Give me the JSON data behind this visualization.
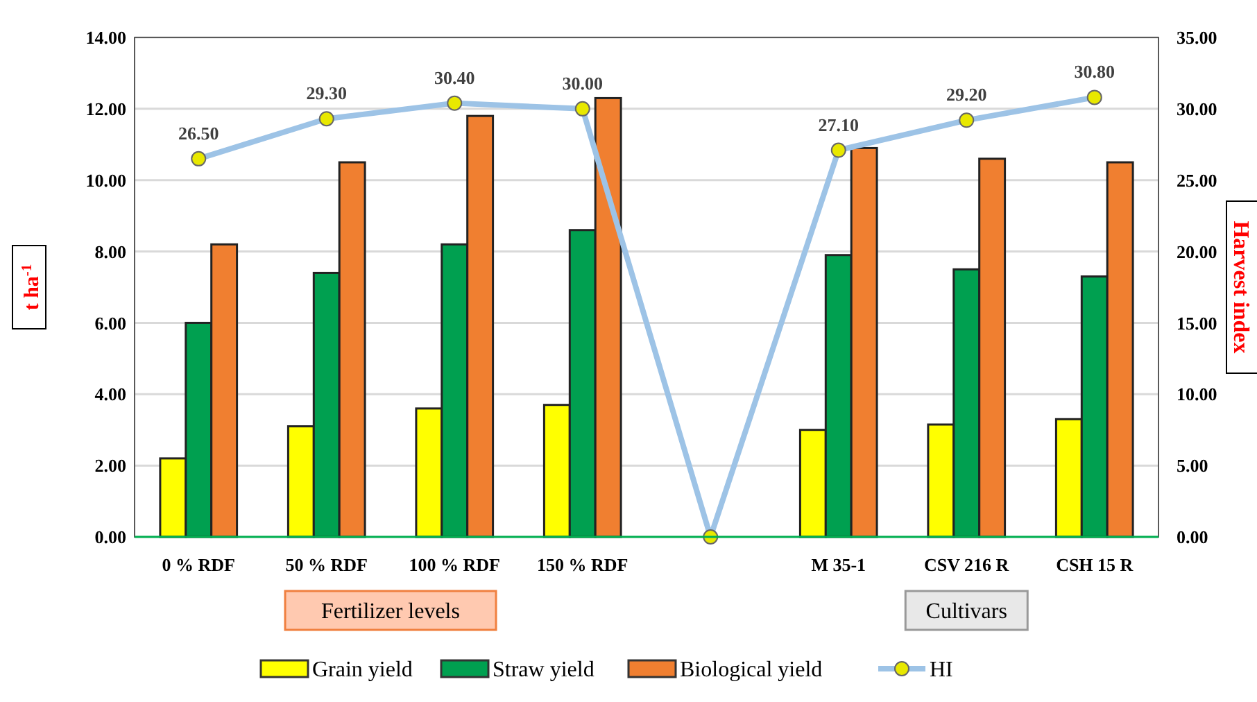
{
  "chart_data": {
    "type": "bar",
    "ylabel": "t ha$^{-1}$",
    "y2label": "Harvest index",
    "categories": [
      "0 % RDF",
      "50 % RDF",
      "100 % RDF",
      "150 % RDF",
      null,
      "M 35-1",
      "CSV 216 R",
      "CSH 15 R"
    ],
    "series": [
      {
        "name": "Grain yield",
        "color": "#ffff00",
        "values": [
          2.2,
          3.1,
          3.6,
          3.7,
          null,
          3.0,
          3.15,
          3.3
        ]
      },
      {
        "name": "Straw yield",
        "color": "#00a050",
        "values": [
          6.0,
          7.4,
          8.2,
          8.6,
          null,
          7.9,
          7.5,
          7.3
        ]
      },
      {
        "name": "Biological yield",
        "color": "#f07f30",
        "values": [
          8.2,
          10.5,
          11.8,
          12.3,
          null,
          10.9,
          10.6,
          10.5
        ]
      },
      {
        "name": "HI",
        "type": "line",
        "axis": "y2",
        "color": "#9dc3e6",
        "marker": "circle",
        "values": [
          26.5,
          29.3,
          30.4,
          30.0,
          0,
          27.1,
          29.2,
          30.8
        ],
        "value_labels": [
          "26.50",
          "29.30",
          "30.40",
          "30.00",
          null,
          "27.10",
          "29.20",
          "30.80"
        ]
      }
    ],
    "ylim": [
      0,
      14
    ],
    "yticks": [
      {
        "value": 0,
        "label": "0.00"
      },
      {
        "value": 2,
        "label": "2.00"
      },
      {
        "value": 4,
        "label": "4.00"
      },
      {
        "value": 6,
        "label": "6.00"
      },
      {
        "value": 8,
        "label": "8.00"
      },
      {
        "value": 10,
        "label": "10.00"
      },
      {
        "value": 12,
        "label": "12.00"
      },
      {
        "value": 14,
        "label": "14.00"
      }
    ],
    "y2lim": [
      0,
      35
    ],
    "y2ticks": [
      {
        "value": 0,
        "label": "0.00"
      },
      {
        "value": 5,
        "label": "5.00"
      },
      {
        "value": 10,
        "label": "10.00"
      },
      {
        "value": 15,
        "label": "15.00"
      },
      {
        "value": 20,
        "label": "20.00"
      },
      {
        "value": 25,
        "label": "25.00"
      },
      {
        "value": 30,
        "label": "30.00"
      },
      {
        "value": 35,
        "label": "35.00"
      }
    ],
    "grid": "y",
    "legend": "bottom",
    "annotations": [
      "Fertilizer levels",
      "Cultivars"
    ]
  }
}
